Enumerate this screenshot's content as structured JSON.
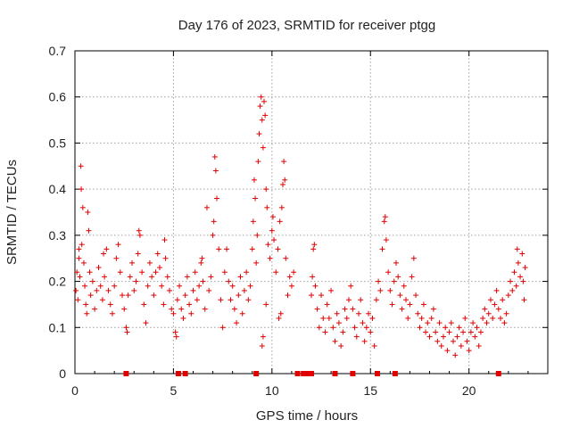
{
  "chart_data": {
    "type": "scatter",
    "title": "Day 176 of 2023, SRMTID for receiver ptgg",
    "xlabel": "GPS time / hours",
    "ylabel": "SRMTID / TECUs",
    "xlim": [
      0,
      24
    ],
    "ylim": [
      0,
      0.7
    ],
    "xticks": [
      0,
      5,
      10,
      15,
      20
    ],
    "xtick_labels": [
      "0",
      "5",
      "10",
      "15",
      "20"
    ],
    "yticks": [
      0,
      0.1,
      0.2,
      0.3,
      0.4,
      0.5,
      0.6,
      0.7
    ],
    "ytick_labels": [
      "0",
      "0.1",
      "0.2",
      "0.3",
      "0.4",
      "0.5",
      "0.6",
      "0.7"
    ],
    "grid": true,
    "marker": "plus",
    "color": "#e00000",
    "series": [
      {
        "name": "SRMTID",
        "points": [
          [
            0.05,
            0.18
          ],
          [
            0.1,
            0.22
          ],
          [
            0.15,
            0.16
          ],
          [
            0.2,
            0.25
          ],
          [
            0.25,
            0.21
          ],
          [
            0.3,
            0.45
          ],
          [
            0.32,
            0.4
          ],
          [
            0.35,
            0.28
          ],
          [
            0.4,
            0.36
          ],
          [
            0.45,
            0.24
          ],
          [
            0.5,
            0.19
          ],
          [
            0.55,
            0.15
          ],
          [
            0.6,
            0.13
          ],
          [
            0.65,
            0.35
          ],
          [
            0.7,
            0.31
          ],
          [
            0.75,
            0.22
          ],
          [
            0.8,
            0.17
          ],
          [
            0.9,
            0.2
          ],
          [
            1.0,
            0.14
          ],
          [
            1.1,
            0.18
          ],
          [
            1.2,
            0.23
          ],
          [
            1.3,
            0.19
          ],
          [
            1.4,
            0.16
          ],
          [
            1.5,
            0.21
          ],
          [
            1.6,
            0.27
          ],
          [
            1.7,
            0.18
          ],
          [
            1.8,
            0.15
          ],
          [
            1.9,
            0.13
          ],
          [
            2.0,
            0.19
          ],
          [
            2.1,
            0.25
          ],
          [
            2.2,
            0.28
          ],
          [
            2.3,
            0.22
          ],
          [
            2.4,
            0.17
          ],
          [
            2.5,
            0.14
          ],
          [
            2.6,
            0.1
          ],
          [
            2.65,
            0.09
          ],
          [
            2.7,
            0.17
          ],
          [
            2.8,
            0.21
          ],
          [
            2.9,
            0.24
          ],
          [
            3.0,
            0.18
          ],
          [
            3.1,
            0.2
          ],
          [
            3.2,
            0.26
          ],
          [
            3.3,
            0.3
          ],
          [
            3.4,
            0.22
          ],
          [
            3.5,
            0.15
          ],
          [
            3.6,
            0.11
          ],
          [
            3.7,
            0.19
          ],
          [
            3.8,
            0.24
          ],
          [
            3.9,
            0.21
          ],
          [
            4.0,
            0.17
          ],
          [
            4.1,
            0.22
          ],
          [
            4.2,
            0.26
          ],
          [
            4.3,
            0.23
          ],
          [
            4.4,
            0.19
          ],
          [
            4.5,
            0.15
          ],
          [
            4.6,
            0.25
          ],
          [
            4.7,
            0.21
          ],
          [
            4.8,
            0.18
          ],
          [
            4.9,
            0.14
          ],
          [
            5.0,
            0.13
          ],
          [
            5.1,
            0.09
          ],
          [
            5.15,
            0.08
          ],
          [
            5.2,
            0.16
          ],
          [
            5.3,
            0.19
          ],
          [
            5.4,
            0.14
          ],
          [
            5.5,
            0.12
          ],
          [
            5.6,
            0.17
          ],
          [
            5.7,
            0.21
          ],
          [
            5.8,
            0.15
          ],
          [
            5.9,
            0.13
          ],
          [
            6.0,
            0.18
          ],
          [
            6.1,
            0.22
          ],
          [
            6.2,
            0.16
          ],
          [
            6.3,
            0.19
          ],
          [
            6.4,
            0.24
          ],
          [
            6.5,
            0.2
          ],
          [
            6.6,
            0.14
          ],
          [
            6.7,
            0.36
          ],
          [
            6.8,
            0.18
          ],
          [
            6.9,
            0.21
          ],
          [
            7.0,
            0.3
          ],
          [
            7.05,
            0.33
          ],
          [
            7.1,
            0.47
          ],
          [
            7.15,
            0.44
          ],
          [
            7.2,
            0.38
          ],
          [
            7.3,
            0.27
          ],
          [
            7.4,
            0.16
          ],
          [
            7.5,
            0.1
          ],
          [
            7.6,
            0.22
          ],
          [
            7.7,
            0.27
          ],
          [
            7.8,
            0.2
          ],
          [
            7.9,
            0.16
          ],
          [
            8.0,
            0.19
          ],
          [
            8.1,
            0.14
          ],
          [
            8.2,
            0.11
          ],
          [
            8.3,
            0.17
          ],
          [
            8.4,
            0.21
          ],
          [
            8.5,
            0.13
          ],
          [
            8.6,
            0.18
          ],
          [
            8.7,
            0.22
          ],
          [
            8.8,
            0.16
          ],
          [
            8.9,
            0.19
          ],
          [
            9.0,
            0.27
          ],
          [
            9.05,
            0.33
          ],
          [
            9.1,
            0.42
          ],
          [
            9.15,
            0.38
          ],
          [
            9.2,
            0.24
          ],
          [
            9.25,
            0.3
          ],
          [
            9.3,
            0.46
          ],
          [
            9.35,
            0.52
          ],
          [
            9.4,
            0.58
          ],
          [
            9.45,
            0.6
          ],
          [
            9.5,
            0.55
          ],
          [
            9.55,
            0.49
          ],
          [
            9.6,
            0.59
          ],
          [
            9.65,
            0.56
          ],
          [
            9.7,
            0.4
          ],
          [
            9.75,
            0.36
          ],
          [
            9.8,
            0.28
          ],
          [
            9.9,
            0.25
          ],
          [
            10.0,
            0.31
          ],
          [
            10.05,
            0.34
          ],
          [
            10.1,
            0.29
          ],
          [
            10.2,
            0.22
          ],
          [
            10.3,
            0.27
          ],
          [
            10.4,
            0.33
          ],
          [
            10.5,
            0.36
          ],
          [
            10.55,
            0.41
          ],
          [
            10.6,
            0.46
          ],
          [
            10.65,
            0.42
          ],
          [
            10.7,
            0.25
          ],
          [
            10.8,
            0.17
          ],
          [
            10.9,
            0.21
          ],
          [
            11.0,
            0.19
          ],
          [
            11.1,
            0.22
          ],
          [
            9.55,
            0.08
          ],
          [
            9.5,
            0.06
          ],
          [
            10.45,
            0.13
          ],
          [
            10.35,
            0.12
          ],
          [
            9.7,
            0.15
          ],
          [
            12.0,
            0.17
          ],
          [
            12.05,
            0.21
          ],
          [
            12.1,
            0.27
          ],
          [
            12.15,
            0.28
          ],
          [
            12.2,
            0.19
          ],
          [
            12.3,
            0.14
          ],
          [
            12.4,
            0.1
          ],
          [
            12.5,
            0.17
          ],
          [
            12.6,
            0.12
          ],
          [
            12.7,
            0.09
          ],
          [
            12.8,
            0.15
          ],
          [
            12.9,
            0.12
          ],
          [
            13.0,
            0.18
          ],
          [
            13.1,
            0.1
          ],
          [
            13.2,
            0.07
          ],
          [
            13.3,
            0.13
          ],
          [
            13.4,
            0.11
          ],
          [
            13.5,
            0.06
          ],
          [
            13.6,
            0.09
          ],
          [
            13.7,
            0.14
          ],
          [
            13.8,
            0.12
          ],
          [
            13.9,
            0.16
          ],
          [
            14.0,
            0.19
          ],
          [
            14.1,
            0.14
          ],
          [
            14.2,
            0.1
          ],
          [
            14.3,
            0.08
          ],
          [
            14.4,
            0.13
          ],
          [
            14.5,
            0.16
          ],
          [
            14.6,
            0.11
          ],
          [
            14.7,
            0.07
          ],
          [
            14.8,
            0.1
          ],
          [
            14.9,
            0.13
          ],
          [
            15.0,
            0.09
          ],
          [
            15.1,
            0.12
          ],
          [
            15.2,
            0.06
          ],
          [
            15.3,
            0.16
          ],
          [
            15.4,
            0.2
          ],
          [
            15.5,
            0.18
          ],
          [
            15.6,
            0.27
          ],
          [
            15.7,
            0.33
          ],
          [
            15.75,
            0.34
          ],
          [
            15.8,
            0.29
          ],
          [
            15.9,
            0.22
          ],
          [
            16.0,
            0.18
          ],
          [
            16.1,
            0.15
          ],
          [
            16.2,
            0.2
          ],
          [
            16.3,
            0.24
          ],
          [
            16.4,
            0.21
          ],
          [
            16.5,
            0.17
          ],
          [
            16.6,
            0.14
          ],
          [
            16.7,
            0.19
          ],
          [
            16.8,
            0.16
          ],
          [
            16.9,
            0.12
          ],
          [
            17.0,
            0.15
          ],
          [
            17.1,
            0.21
          ],
          [
            17.2,
            0.25
          ],
          [
            17.3,
            0.17
          ],
          [
            17.4,
            0.13
          ],
          [
            17.5,
            0.1
          ],
          [
            17.6,
            0.12
          ],
          [
            17.7,
            0.15
          ],
          [
            17.8,
            0.09
          ],
          [
            17.9,
            0.11
          ],
          [
            18.0,
            0.08
          ],
          [
            18.1,
            0.12
          ],
          [
            18.2,
            0.14
          ],
          [
            18.3,
            0.09
          ],
          [
            18.4,
            0.07
          ],
          [
            18.5,
            0.11
          ],
          [
            18.6,
            0.06
          ],
          [
            18.7,
            0.08
          ],
          [
            18.8,
            0.1
          ],
          [
            18.9,
            0.05
          ],
          [
            19.0,
            0.09
          ],
          [
            19.1,
            0.11
          ],
          [
            19.2,
            0.07
          ],
          [
            19.3,
            0.04
          ],
          [
            19.4,
            0.08
          ],
          [
            19.5,
            0.1
          ],
          [
            19.6,
            0.06
          ],
          [
            19.7,
            0.09
          ],
          [
            19.8,
            0.12
          ],
          [
            19.9,
            0.07
          ],
          [
            20.0,
            0.05
          ],
          [
            20.1,
            0.09
          ],
          [
            20.2,
            0.11
          ],
          [
            20.3,
            0.08
          ],
          [
            20.4,
            0.1
          ],
          [
            20.5,
            0.06
          ],
          [
            20.6,
            0.09
          ],
          [
            20.7,
            0.12
          ],
          [
            20.8,
            0.14
          ],
          [
            20.9,
            0.11
          ],
          [
            21.0,
            0.13
          ],
          [
            21.1,
            0.16
          ],
          [
            21.2,
            0.12
          ],
          [
            21.3,
            0.15
          ],
          [
            21.4,
            0.18
          ],
          [
            21.5,
            0.14
          ],
          [
            21.6,
            0.12
          ],
          [
            21.7,
            0.16
          ],
          [
            21.8,
            0.11
          ],
          [
            21.9,
            0.13
          ],
          [
            22.0,
            0.17
          ],
          [
            22.1,
            0.2
          ],
          [
            22.2,
            0.18
          ],
          [
            22.3,
            0.22
          ],
          [
            22.4,
            0.19
          ],
          [
            22.45,
            0.27
          ],
          [
            22.5,
            0.24
          ],
          [
            22.6,
            0.21
          ],
          [
            22.7,
            0.26
          ],
          [
            22.75,
            0.2
          ],
          [
            22.8,
            0.16
          ],
          [
            22.85,
            0.23
          ],
          [
            0.2,
            0.27
          ],
          [
            1.45,
            0.26
          ],
          [
            3.25,
            0.31
          ],
          [
            4.55,
            0.29
          ],
          [
            6.45,
            0.25
          ]
        ]
      }
    ],
    "zero_markers_x": [
      2.6,
      5.25,
      5.6,
      9.2,
      11.3,
      11.6,
      11.85,
      12.0,
      13.2,
      14.1,
      15.35,
      16.25,
      21.5
    ]
  }
}
